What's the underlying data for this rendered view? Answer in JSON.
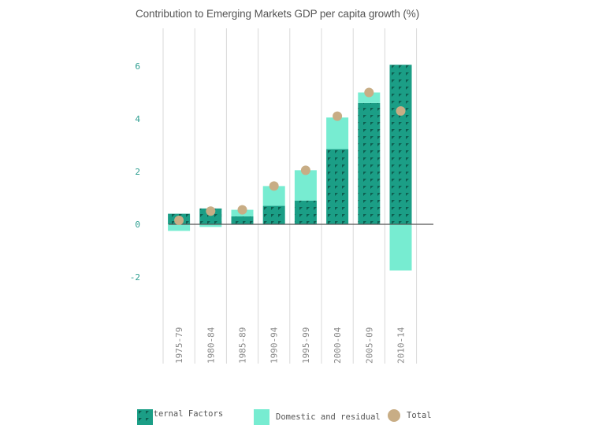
{
  "chart_data": {
    "type": "bar",
    "title": "Contribution to Emerging Markets GDP per capita growth (%)",
    "categories": [
      "1975-79",
      "1980-84",
      "1985-89",
      "1990-94",
      "1995-99",
      "2000-04",
      "2005-09",
      "2010-14"
    ],
    "series": [
      {
        "name": "External Factors",
        "values": [
          0.4,
          0.6,
          0.3,
          0.7,
          0.9,
          2.85,
          4.6,
          6.05
        ]
      },
      {
        "name": "Domestic and residual",
        "values": [
          -0.25,
          -0.1,
          0.25,
          0.75,
          1.15,
          1.2,
          0.4,
          -1.75
        ]
      },
      {
        "name": "Total",
        "values": [
          0.15,
          0.5,
          0.55,
          1.45,
          2.05,
          4.1,
          5.0,
          4.3
        ]
      }
    ],
    "ylim": [
      -4,
      7.5
    ],
    "yticks": [
      -2,
      0,
      2,
      4,
      6
    ],
    "colors": {
      "external": "#1b9e86",
      "external_pattern": "#0e5e50",
      "domestic": "#77ecd1",
      "total": "#c8ad85",
      "grid": "#d9d9d9",
      "axis": "#555555"
    }
  },
  "legend": [
    {
      "label": "External Factors",
      "icon": "patterned-square"
    },
    {
      "label": "Domestic and residual",
      "icon": "square"
    },
    {
      "label": "Total",
      "icon": "circle"
    }
  ]
}
